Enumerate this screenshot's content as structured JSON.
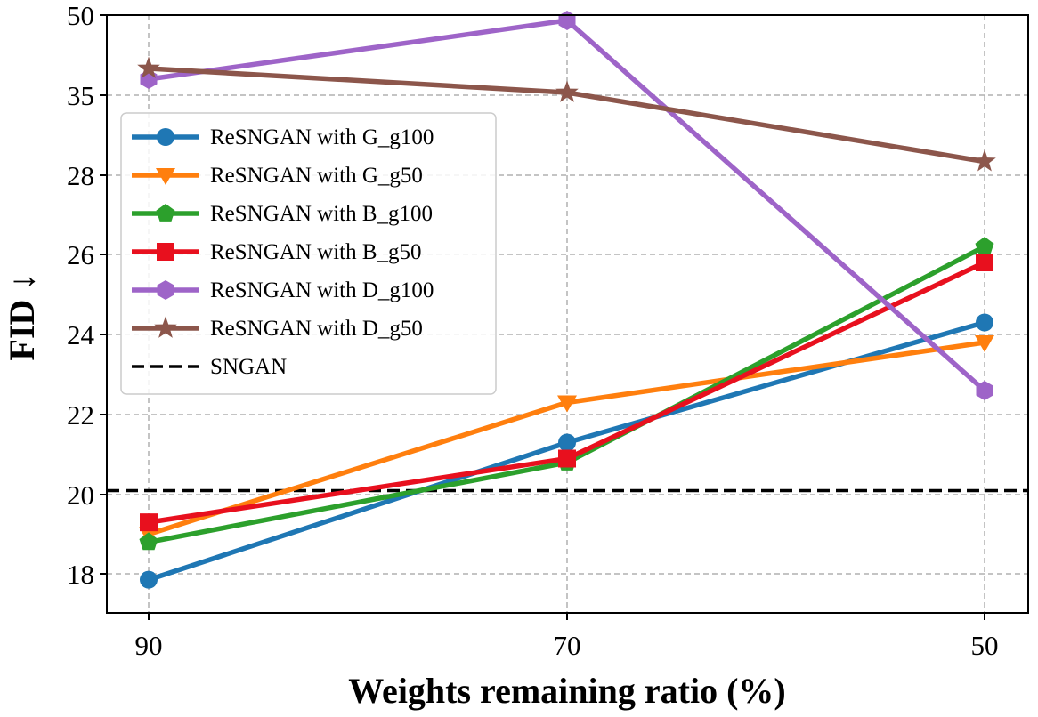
{
  "chart_data": {
    "type": "line",
    "title": "",
    "xlabel": "Weights remaining ratio (%)",
    "ylabel": "FID",
    "ylabel_arrow": "↓",
    "categories": [
      "90",
      "70",
      "50"
    ],
    "y_tick_labels": [
      "18",
      "20",
      "22",
      "24",
      "26",
      "28",
      "35",
      "50"
    ],
    "y_scale": "nonlinear (tick labels unevenly spaced: 18, 20, 22, 24, 26, 28, 35, 50 at equal intervals)",
    "ylim": [
      17,
      50
    ],
    "grid": true,
    "legend_position": "upper-left",
    "series": [
      {
        "name": "ReSNGAN with G_g100",
        "color": "#1f77b4",
        "marker": "circle",
        "values": [
          17.85,
          21.3,
          24.3
        ]
      },
      {
        "name": "ReSNGAN with G_g50",
        "color": "#ff7f0e",
        "marker": "triangle-down",
        "values": [
          19.0,
          22.3,
          23.8
        ]
      },
      {
        "name": "ReSNGAN with B_g100",
        "color": "#2ca02c",
        "marker": "pentagon",
        "values": [
          18.8,
          20.8,
          26.2
        ]
      },
      {
        "name": "ReSNGAN with B_g50",
        "color": "#e8101e",
        "marker": "square",
        "values": [
          19.3,
          20.9,
          25.8
        ]
      },
      {
        "name": "ReSNGAN with D_g100",
        "color": "#9e64c8",
        "marker": "hexagon",
        "values": [
          38.0,
          49.0,
          22.6
        ]
      },
      {
        "name": "ReSNGAN with D_g50",
        "color": "#8c564b",
        "marker": "star",
        "values": [
          40.0,
          35.5,
          29.2
        ]
      }
    ],
    "reference_lines": [
      {
        "name": "SNGAN",
        "value": 20.1,
        "color": "#000000",
        "style": "dashed"
      }
    ]
  }
}
